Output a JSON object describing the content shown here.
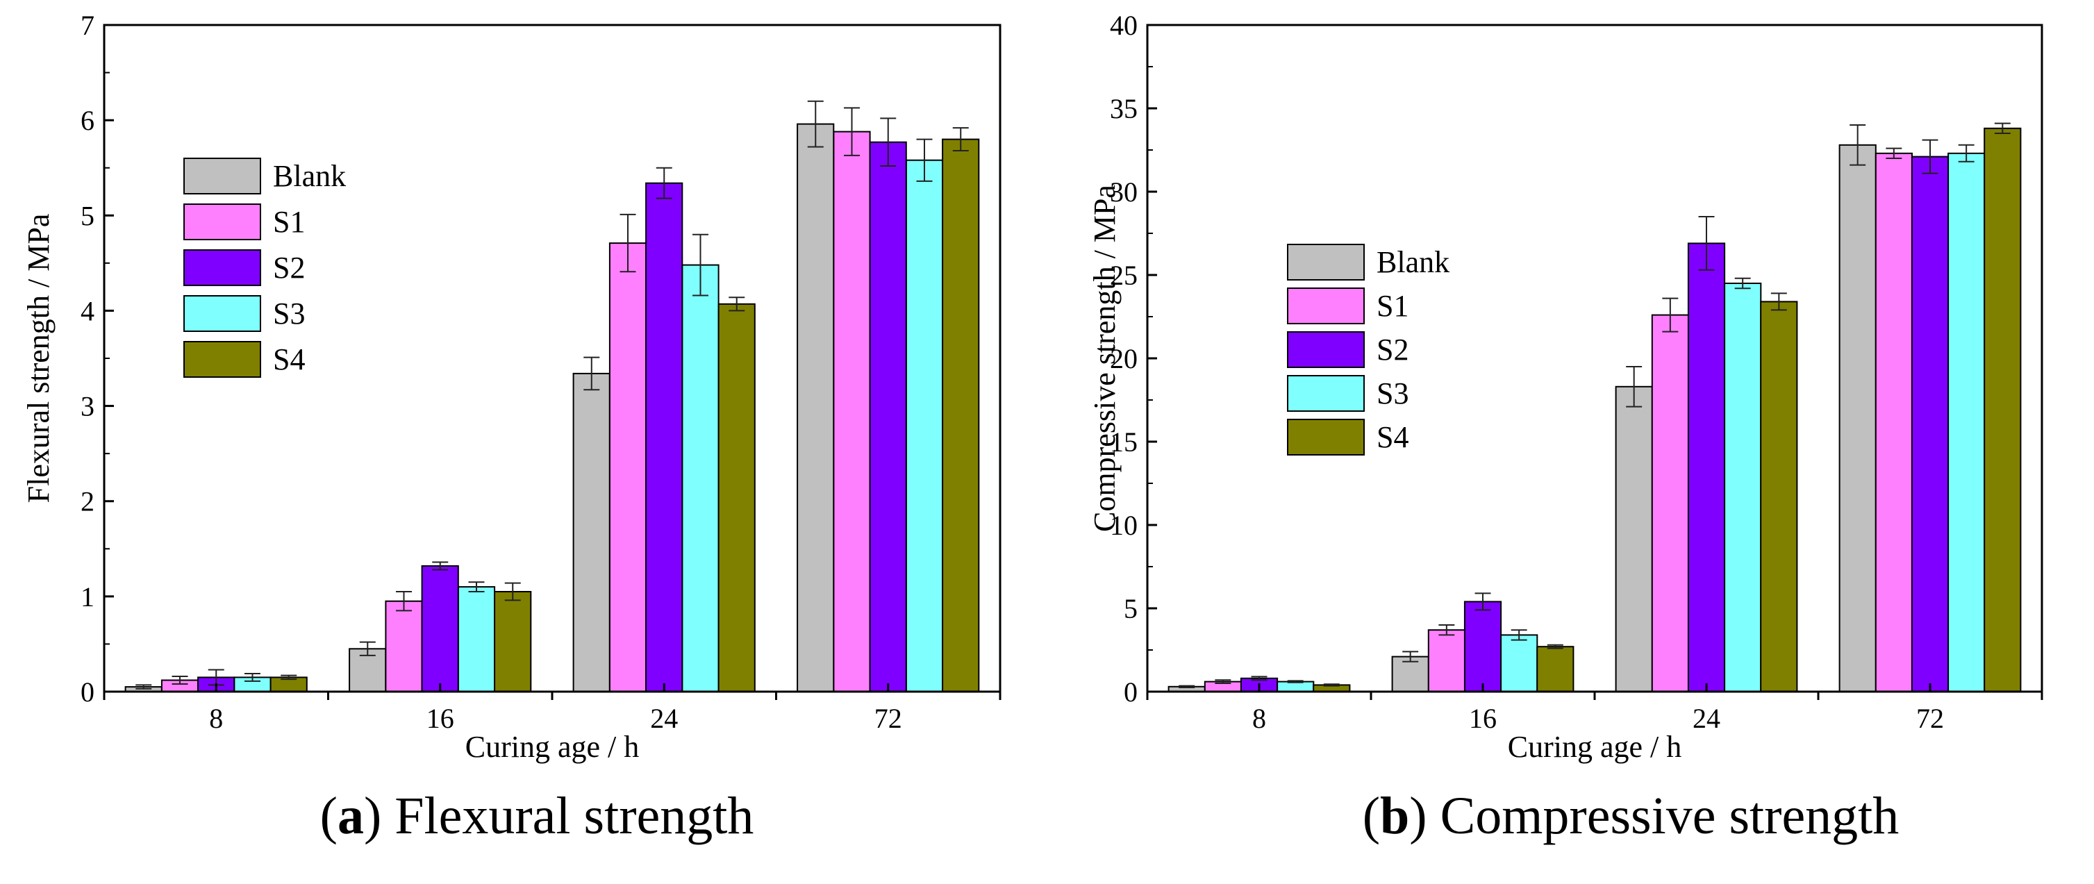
{
  "colors": {
    "Blank": "#c0c0c0",
    "S1": "#ff80ff",
    "S2": "#8000ff",
    "S3": "#80ffff",
    "S4": "#808000"
  },
  "chart_data": [
    {
      "type": "bar",
      "panel": "a",
      "caption_letter": "a",
      "caption_text": "Flexural strength",
      "xlabel": "Curing age / h",
      "ylabel": "Flexural strength / MPa",
      "categories": [
        "8",
        "16",
        "24",
        "72"
      ],
      "ylim": [
        0,
        7
      ],
      "yticks": [
        0,
        1,
        2,
        3,
        4,
        5,
        6,
        7
      ],
      "legend_position": "left, upper-middle",
      "series": [
        {
          "name": "Blank",
          "values": [
            0.05,
            0.45,
            3.34,
            5.96
          ],
          "errors": [
            0.02,
            0.07,
            0.17,
            0.24
          ]
        },
        {
          "name": "S1",
          "values": [
            0.12,
            0.95,
            4.71,
            5.88
          ],
          "errors": [
            0.04,
            0.1,
            0.3,
            0.25
          ]
        },
        {
          "name": "S2",
          "values": [
            0.15,
            1.32,
            5.34,
            5.77
          ],
          "errors": [
            0.08,
            0.04,
            0.16,
            0.25
          ]
        },
        {
          "name": "S3",
          "values": [
            0.15,
            1.1,
            4.48,
            5.58
          ],
          "errors": [
            0.04,
            0.05,
            0.32,
            0.22
          ]
        },
        {
          "name": "S4",
          "values": [
            0.15,
            1.05,
            4.07,
            5.8
          ],
          "errors": [
            0.02,
            0.09,
            0.07,
            0.12
          ]
        }
      ]
    },
    {
      "type": "bar",
      "panel": "b",
      "caption_letter": "b",
      "caption_text": "Compressive strength",
      "xlabel": "Curing age / h",
      "ylabel": "Compressive strength / MPa",
      "categories": [
        "8",
        "16",
        "24",
        "72"
      ],
      "ylim": [
        0,
        40
      ],
      "yticks": [
        0,
        5,
        10,
        15,
        20,
        25,
        30,
        35,
        40
      ],
      "legend_position": "left, middle",
      "series": [
        {
          "name": "Blank",
          "values": [
            0.3,
            2.1,
            18.3,
            32.8
          ],
          "errors": [
            0.05,
            0.3,
            1.2,
            1.2
          ]
        },
        {
          "name": "S1",
          "values": [
            0.6,
            3.7,
            22.6,
            32.3
          ],
          "errors": [
            0.1,
            0.3,
            1.0,
            0.3
          ]
        },
        {
          "name": "S2",
          "values": [
            0.8,
            5.4,
            26.9,
            32.1
          ],
          "errors": [
            0.1,
            0.5,
            1.6,
            1.0
          ]
        },
        {
          "name": "S3",
          "values": [
            0.6,
            3.4,
            24.5,
            32.3
          ],
          "errors": [
            0.05,
            0.3,
            0.3,
            0.5
          ]
        },
        {
          "name": "S4",
          "values": [
            0.4,
            2.7,
            23.4,
            33.8
          ],
          "errors": [
            0.05,
            0.1,
            0.5,
            0.3
          ]
        }
      ]
    }
  ]
}
